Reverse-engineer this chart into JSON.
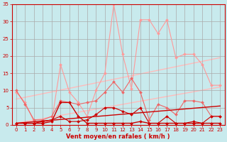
{
  "background_color": "#c8eaed",
  "grid_color": "#aaaaaa",
  "xlabel": "Vent moyen/en rafales ( km/h )",
  "xlabel_color": "#cc0000",
  "tick_color": "#cc0000",
  "xlim": [
    -0.5,
    23.5
  ],
  "ylim": [
    0,
    35
  ],
  "yticks": [
    0,
    5,
    10,
    15,
    20,
    25,
    30,
    35
  ],
  "xticks": [
    0,
    1,
    2,
    3,
    4,
    5,
    6,
    7,
    8,
    9,
    10,
    11,
    12,
    13,
    14,
    15,
    16,
    17,
    18,
    19,
    20,
    21,
    22,
    23
  ],
  "series": [
    {
      "x": [
        0,
        1,
        2,
        3,
        4,
        5,
        6,
        7,
        8,
        9,
        10,
        11,
        12,
        13,
        14,
        15,
        16,
        17,
        18,
        19,
        20,
        21,
        22,
        23
      ],
      "y": [
        9.5,
        6.5,
        1,
        1,
        1,
        17.5,
        9.5,
        6.5,
        2.5,
        10.0,
        15.0,
        35.0,
        20.5,
        10.5,
        30.5,
        30.5,
        26.5,
        30.5,
        19.5,
        20.5,
        20.5,
        17.5,
        11.5,
        11.5
      ],
      "color": "#ff9999",
      "linewidth": 0.8,
      "marker": "D",
      "markersize": 2.0,
      "zorder": 2
    },
    {
      "x": [
        0,
        23
      ],
      "y": [
        7.5,
        19.5
      ],
      "color": "#ffbbbb",
      "linewidth": 1.0,
      "marker": null,
      "markersize": 0,
      "zorder": 1
    },
    {
      "x": [
        0,
        23
      ],
      "y": [
        0.5,
        11.0
      ],
      "color": "#ffbbbb",
      "linewidth": 1.0,
      "marker": null,
      "markersize": 0,
      "zorder": 1
    },
    {
      "x": [
        0,
        1,
        2,
        3,
        4,
        5,
        6,
        7,
        8,
        9,
        10,
        11,
        12,
        13,
        14,
        15,
        16,
        17,
        18,
        19,
        20,
        21,
        22,
        23
      ],
      "y": [
        10.0,
        6.0,
        1.5,
        1.5,
        2.5,
        7.0,
        6.5,
        6.0,
        6.5,
        7.0,
        9.5,
        12.5,
        9.5,
        13.5,
        9.5,
        1.5,
        6.0,
        5.0,
        3.0,
        7.0,
        7.0,
        6.5,
        2.5,
        2.5
      ],
      "color": "#ee6666",
      "linewidth": 0.8,
      "marker": "D",
      "markersize": 2.0,
      "zorder": 3
    },
    {
      "x": [
        0,
        1,
        2,
        3,
        4,
        5,
        6,
        7,
        8,
        9,
        10,
        11,
        12,
        13,
        14,
        15,
        16,
        17,
        18,
        19,
        20,
        21,
        22,
        23
      ],
      "y": [
        0.5,
        0.5,
        0.5,
        0.5,
        1.0,
        6.5,
        6.5,
        2.5,
        0.5,
        0.5,
        0.5,
        0.5,
        0.5,
        0.5,
        1.0,
        0.5,
        0.5,
        0.5,
        0.5,
        0.5,
        0.5,
        0.5,
        0.5,
        0.5
      ],
      "color": "#cc0000",
      "linewidth": 1.0,
      "marker": "D",
      "markersize": 2.0,
      "zorder": 4
    },
    {
      "x": [
        0,
        1,
        2,
        3,
        4,
        5,
        6,
        7,
        8,
        9,
        10,
        11,
        12,
        13,
        14,
        15,
        16,
        17,
        18,
        19,
        20,
        21,
        22,
        23
      ],
      "y": [
        0.5,
        0.5,
        0.5,
        1.0,
        1.5,
        2.5,
        1.0,
        1.0,
        1.5,
        3.0,
        5.0,
        5.0,
        4.0,
        3.0,
        5.0,
        0.5,
        0.5,
        2.5,
        0.5,
        0.5,
        1.0,
        0.5,
        2.5,
        2.5
      ],
      "color": "#cc0000",
      "linewidth": 0.8,
      "marker": "D",
      "markersize": 2.0,
      "zorder": 4
    },
    {
      "x": [
        0,
        23
      ],
      "y": [
        0.5,
        5.5
      ],
      "color": "#cc0000",
      "linewidth": 1.0,
      "marker": null,
      "markersize": 0,
      "zorder": 3
    }
  ]
}
